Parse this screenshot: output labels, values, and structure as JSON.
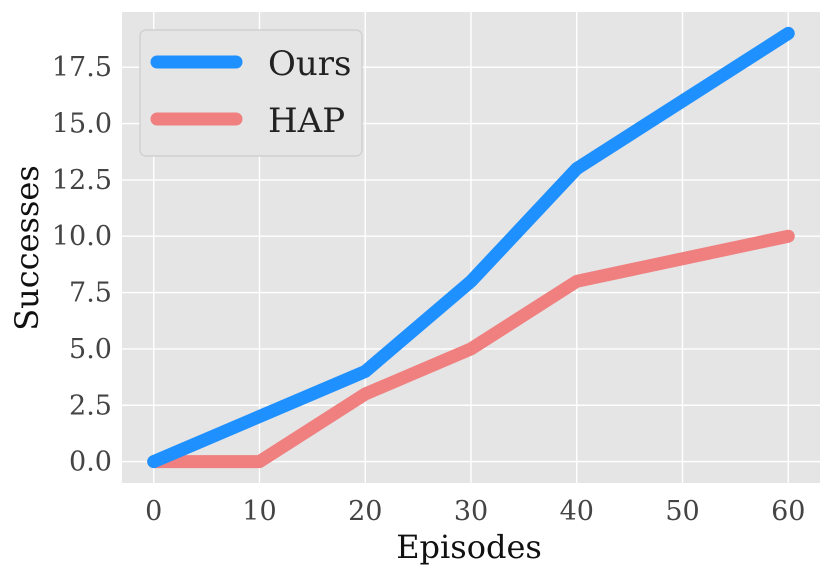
{
  "chart_data": {
    "type": "line",
    "title": "",
    "xlabel": "Episodes",
    "ylabel": "Successes",
    "x": [
      0,
      10,
      20,
      30,
      40,
      50,
      60
    ],
    "xlim": [
      -3,
      63
    ],
    "ylim": [
      -0.95,
      19.95
    ],
    "xticks": [
      "0",
      "10",
      "20",
      "30",
      "40",
      "50",
      "60"
    ],
    "yticks": [
      "0.0",
      "2.5",
      "5.0",
      "7.5",
      "10.0",
      "12.5",
      "15.0",
      "17.5"
    ],
    "grid": true,
    "legend_position": "top-left",
    "background": "#e5e5e5",
    "series": [
      {
        "name": "Ours",
        "color": "#1e90ff",
        "values": [
          0,
          2,
          4,
          8,
          13,
          16,
          19
        ]
      },
      {
        "name": "HAP",
        "color": "#f08080",
        "values": [
          0,
          0,
          3,
          5,
          8,
          9,
          10
        ]
      }
    ]
  }
}
